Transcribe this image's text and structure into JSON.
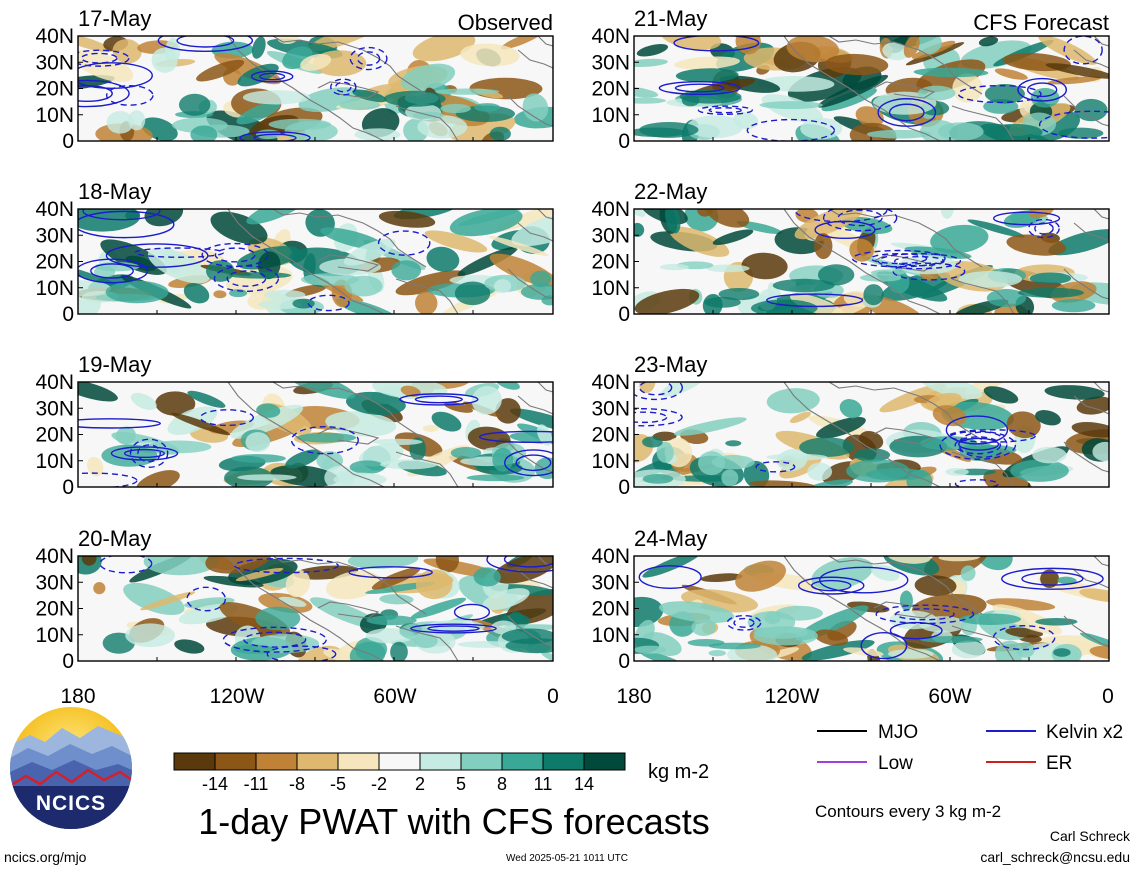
{
  "panels": [
    {
      "date": "17-May",
      "corner_label": "Observed",
      "column": "left"
    },
    {
      "date": "18-May",
      "corner_label": "",
      "column": "left"
    },
    {
      "date": "19-May",
      "corner_label": "",
      "column": "left"
    },
    {
      "date": "20-May",
      "corner_label": "",
      "column": "left"
    },
    {
      "date": "21-May",
      "corner_label": "CFS Forecast",
      "column": "right"
    },
    {
      "date": "22-May",
      "corner_label": "",
      "column": "right"
    },
    {
      "date": "23-May",
      "corner_label": "",
      "column": "right"
    },
    {
      "date": "24-May",
      "corner_label": "",
      "column": "right"
    }
  ],
  "axes": {
    "lat_ticks": [
      "40N",
      "30N",
      "20N",
      "10N",
      "0"
    ],
    "lon_ticks": [
      "180",
      "120W",
      "60W",
      "0"
    ]
  },
  "colorbar": {
    "labels": [
      "-14",
      "-11",
      "-8",
      "-5",
      "-2",
      "2",
      "5",
      "8",
      "11",
      "14"
    ],
    "colors": [
      "#5a3a0c",
      "#8c5616",
      "#c08236",
      "#deb86e",
      "#f5e6bd",
      "#f7f7f7",
      "#c6ebe2",
      "#82cfc0",
      "#3aa896",
      "#0e7a6a",
      "#00493b"
    ],
    "units": "kg m-2"
  },
  "title": "1-day PWAT with CFS forecasts",
  "legend": {
    "items": [
      {
        "label": "MJO",
        "color": "#000000"
      },
      {
        "label": "Kelvin x2",
        "color": "#1c1ccc"
      },
      {
        "label": "Low",
        "color": "#a040e0"
      },
      {
        "label": "ER",
        "color": "#cc2020"
      }
    ],
    "contour_note": "Contours every 3 kg m-2"
  },
  "credits": {
    "author": "Carl Schreck",
    "email": "carl_schreck@ncsu.edu",
    "site": "ncics.org/mjo",
    "timestamp": "Wed 2025-05-21 1011 UTC",
    "logo_text": "NCICS"
  },
  "colors": {
    "contour_blue": "#1c1ccc",
    "coast_gray": "#7a7a7a"
  }
}
